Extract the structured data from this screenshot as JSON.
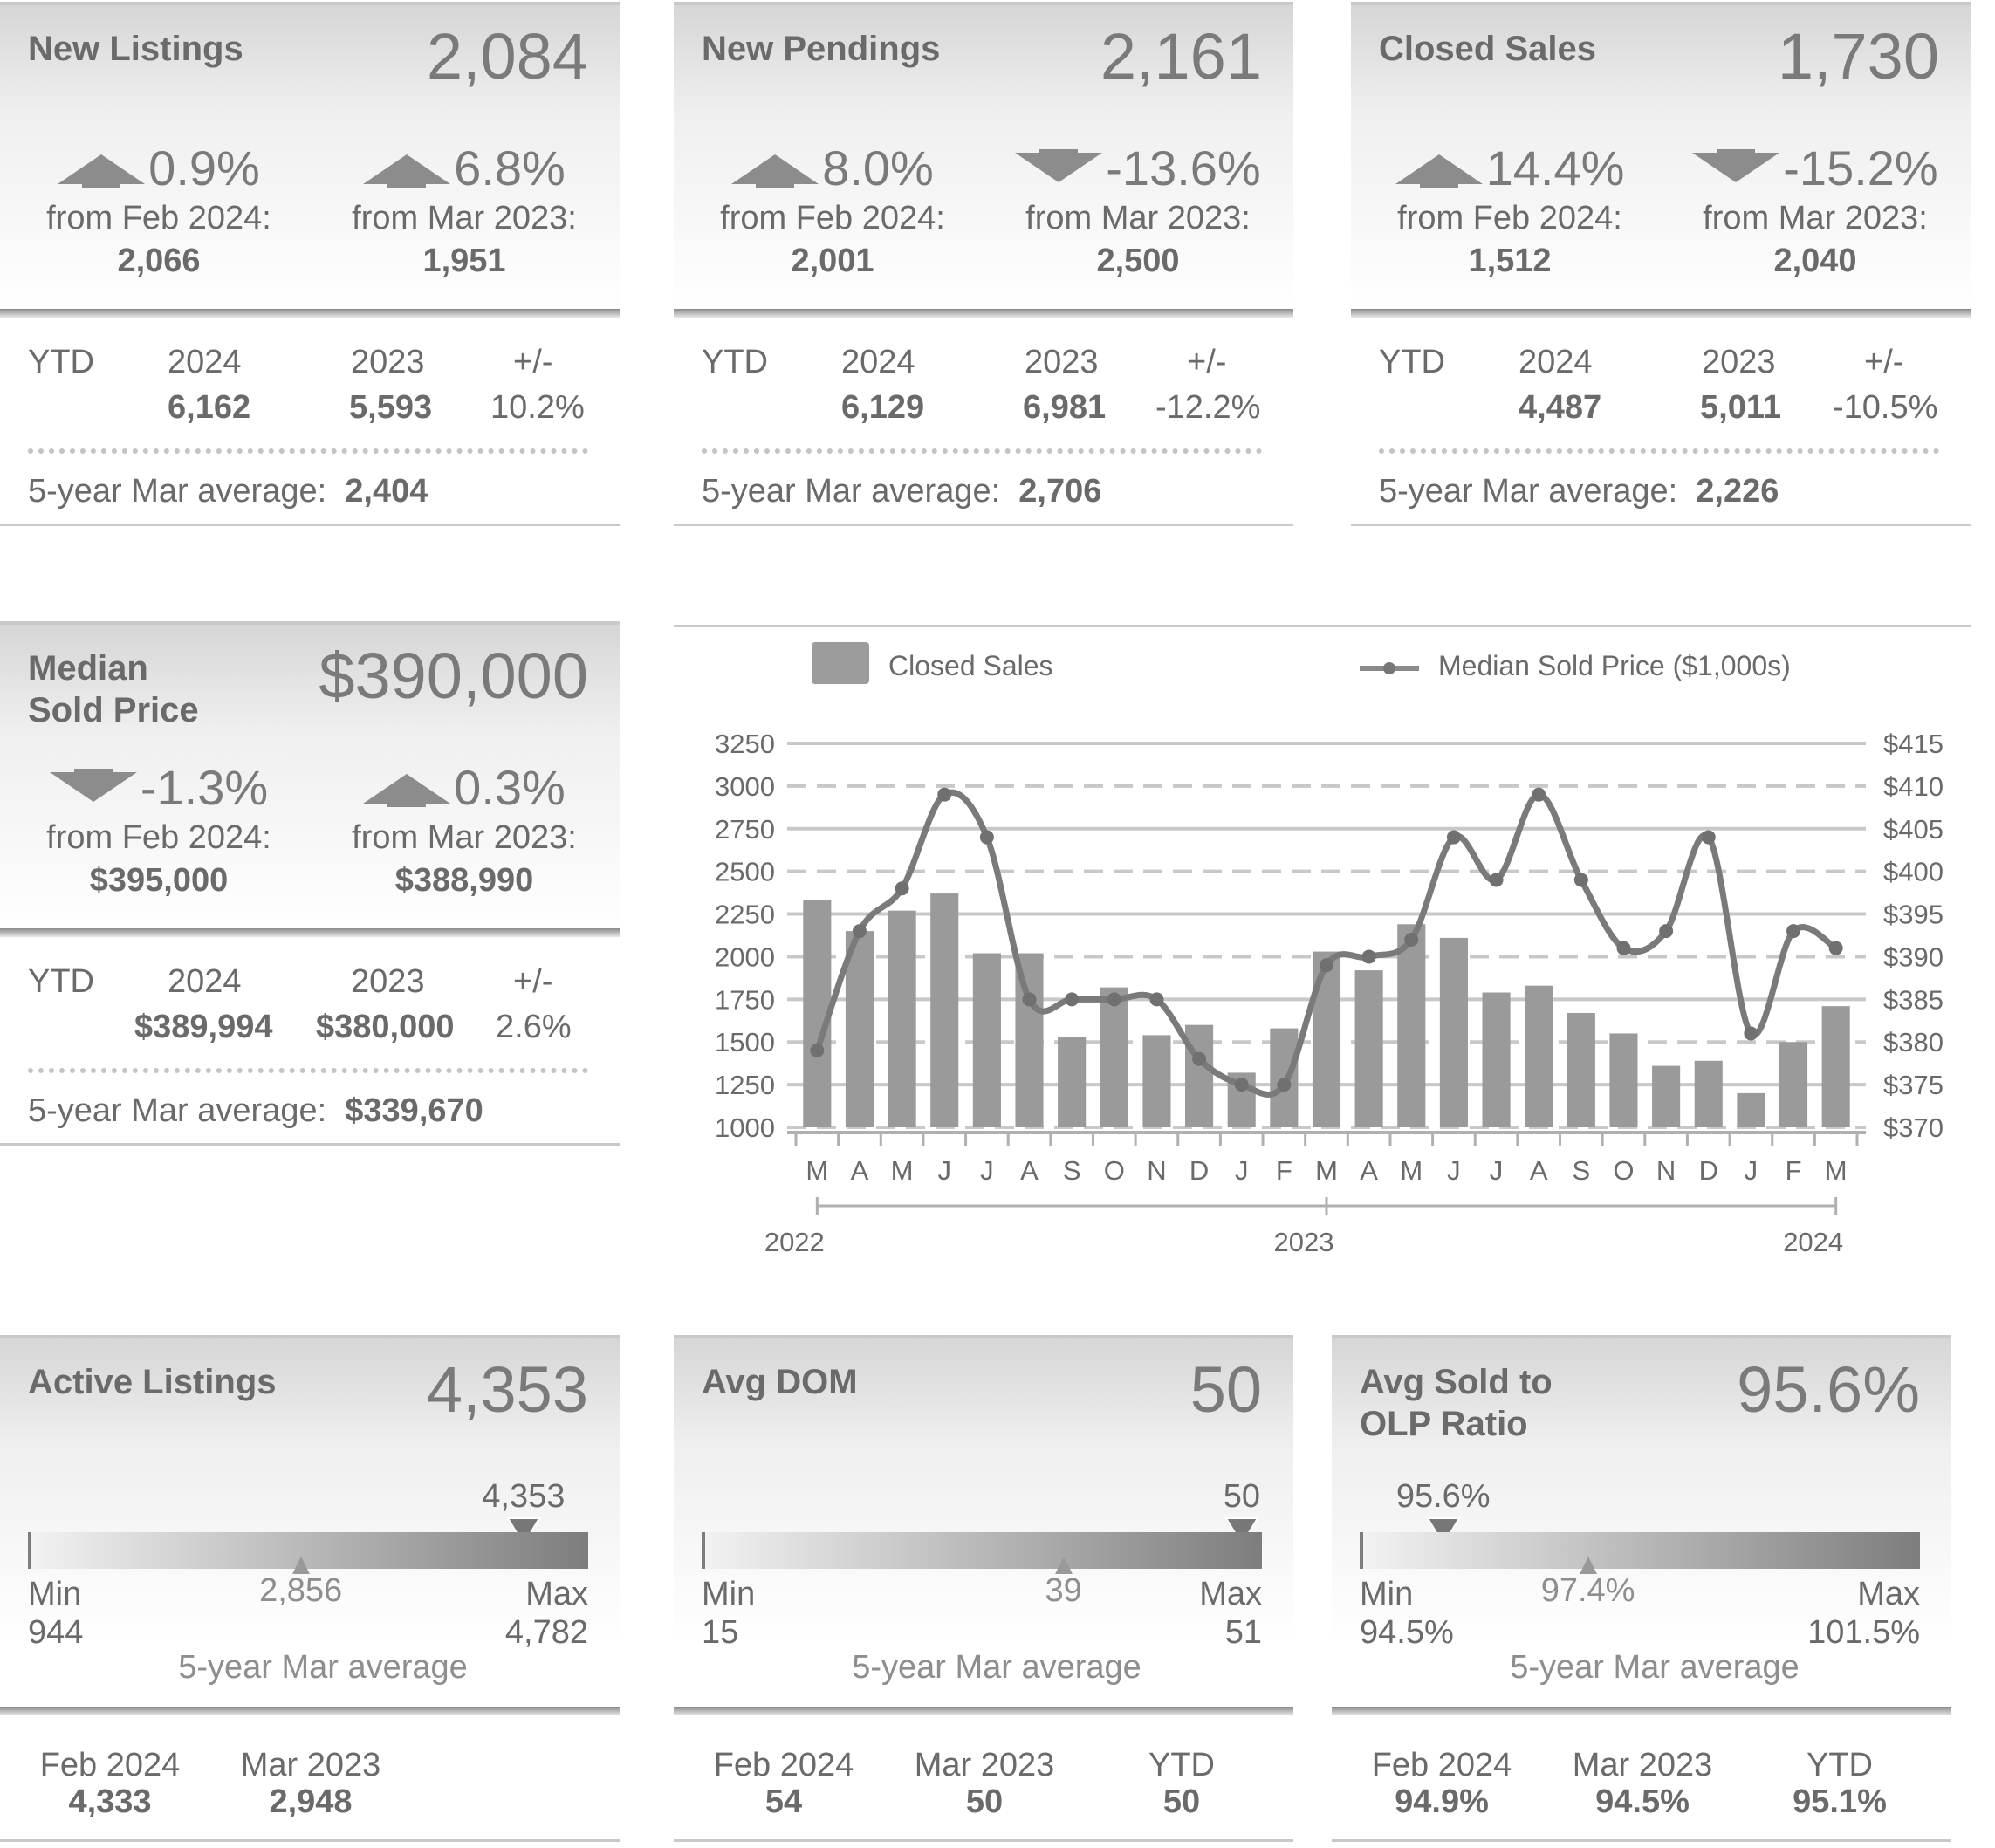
{
  "new_listings": {
    "title": "New Listings",
    "value": "2,084",
    "chg1": {
      "dir": "up",
      "pct": "0.9%",
      "from": "from Feb 2024:",
      "val": "2,066"
    },
    "chg2": {
      "dir": "up",
      "pct": "6.8%",
      "from": "from Mar 2023:",
      "val": "1,951"
    },
    "ytd": {
      "label": "YTD",
      "y1": "2024",
      "y2": "2023",
      "pm": "+/-",
      "v1": "6,162",
      "v2": "5,593",
      "vpm": "10.2%"
    },
    "avg_label": "5-year Mar average:",
    "avg_value": "2,404"
  },
  "new_pendings": {
    "title": "New Pendings",
    "value": "2,161",
    "chg1": {
      "dir": "up",
      "pct": "8.0%",
      "from": "from Feb 2024:",
      "val": "2,001"
    },
    "chg2": {
      "dir": "down",
      "pct": "-13.6%",
      "from": "from Mar 2023:",
      "val": "2,500"
    },
    "ytd": {
      "label": "YTD",
      "y1": "2024",
      "y2": "2023",
      "pm": "+/-",
      "v1": "6,129",
      "v2": "6,981",
      "vpm": "-12.2%"
    },
    "avg_label": "5-year Mar average:",
    "avg_value": "2,706"
  },
  "closed_sales": {
    "title": "Closed Sales",
    "value": "1,730",
    "chg1": {
      "dir": "up",
      "pct": "14.4%",
      "from": "from Feb 2024:",
      "val": "1,512"
    },
    "chg2": {
      "dir": "down",
      "pct": "-15.2%",
      "from": "from Mar 2023:",
      "val": "2,040"
    },
    "ytd": {
      "label": "YTD",
      "y1": "2024",
      "y2": "2023",
      "pm": "+/-",
      "v1": "4,487",
      "v2": "5,011",
      "vpm": "-10.5%"
    },
    "avg_label": "5-year Mar average:",
    "avg_value": "2,226"
  },
  "median_price": {
    "title1": "Median",
    "title2": "Sold Price",
    "value": "$390,000",
    "chg1": {
      "dir": "down",
      "pct": "-1.3%",
      "from": "from Feb 2024:",
      "val": "$395,000"
    },
    "chg2": {
      "dir": "up",
      "pct": "0.3%",
      "from": "from Mar 2023:",
      "val": "$388,990"
    },
    "ytd": {
      "label": "YTD",
      "y1": "2024",
      "y2": "2023",
      "pm": "+/-",
      "v1": "$389,994",
      "v2": "$380,000",
      "vpm": "2.6%"
    },
    "avg_label": "5-year Mar average:",
    "avg_value": "$339,670"
  },
  "active_listings": {
    "title": "Active Listings",
    "value": "4,353",
    "gauge": {
      "marker": "4,353",
      "marker_frac": 0.89,
      "avg": "2,856",
      "avg_frac": 0.49,
      "min_label": "Min",
      "min": "944",
      "max_label": "Max",
      "max": "4,782",
      "caption": "5-year Mar average"
    },
    "bottom": [
      {
        "label": "Feb 2024",
        "value": "4,333"
      },
      {
        "label": "Mar 2023",
        "value": "2,948"
      }
    ]
  },
  "avg_dom": {
    "title": "Avg DOM",
    "value": "50",
    "gauge": {
      "marker": "50",
      "marker_frac": 0.97,
      "avg": "39",
      "avg_frac": 0.65,
      "min_label": "Min",
      "min": "15",
      "max_label": "Max",
      "max": "51",
      "caption": "5-year Mar average"
    },
    "bottom": [
      {
        "label": "Feb 2024",
        "value": "54"
      },
      {
        "label": "Mar 2023",
        "value": "50"
      },
      {
        "label": "YTD",
        "value": "50"
      }
    ]
  },
  "sold_olp": {
    "title1": "Avg Sold to",
    "title2": "OLP Ratio",
    "value": "95.6%",
    "gauge": {
      "marker": "95.6%",
      "marker_frac": 0.15,
      "avg": "97.4%",
      "avg_frac": 0.41,
      "min_label": "Min",
      "min": "94.5%",
      "max_label": "Max",
      "max": "101.5%",
      "caption": "5-year Mar average"
    },
    "bottom": [
      {
        "label": "Feb 2024",
        "value": "94.9%"
      },
      {
        "label": "Mar 2023",
        "value": "94.5%"
      },
      {
        "label": "YTD",
        "value": "95.1%"
      }
    ]
  },
  "chart_data": {
    "type": "bar",
    "legend": {
      "bars": "Closed Sales",
      "line": "Median Sold Price ($1,000s)"
    },
    "categories": [
      "M",
      "A",
      "M",
      "J",
      "J",
      "A",
      "S",
      "O",
      "N",
      "D",
      "J",
      "F",
      "M",
      "A",
      "M",
      "J",
      "J",
      "A",
      "S",
      "O",
      "N",
      "D",
      "J",
      "F",
      "M"
    ],
    "years": [
      "2022",
      "2023",
      "2024"
    ],
    "ylim": [
      1000,
      3250
    ],
    "yticks": [
      "3250",
      "3000",
      "2750",
      "2500",
      "2250",
      "2000",
      "1750",
      "1500",
      "1250",
      "1000"
    ],
    "y2lim": [
      370,
      415
    ],
    "y2ticks": [
      "$415",
      "$410",
      "$405",
      "$400",
      "$395",
      "$390",
      "$385",
      "$380",
      "$375",
      "$370"
    ],
    "series": [
      {
        "name": "Closed Sales",
        "type": "bar",
        "values": [
          2330,
          2150,
          2270,
          2370,
          2020,
          2020,
          1530,
          1820,
          1540,
          1600,
          1320,
          1580,
          2030,
          1920,
          2190,
          2110,
          1790,
          1830,
          1670,
          1550,
          1360,
          1390,
          1200,
          1500,
          1710
        ]
      },
      {
        "name": "Median Sold Price ($1,000s)",
        "type": "line",
        "values": [
          379,
          393,
          398,
          409,
          404,
          385,
          385,
          385,
          385,
          378,
          375,
          375,
          389,
          390,
          392,
          404,
          399,
          409,
          399,
          391,
          393,
          404,
          381,
          393,
          391
        ]
      }
    ]
  }
}
